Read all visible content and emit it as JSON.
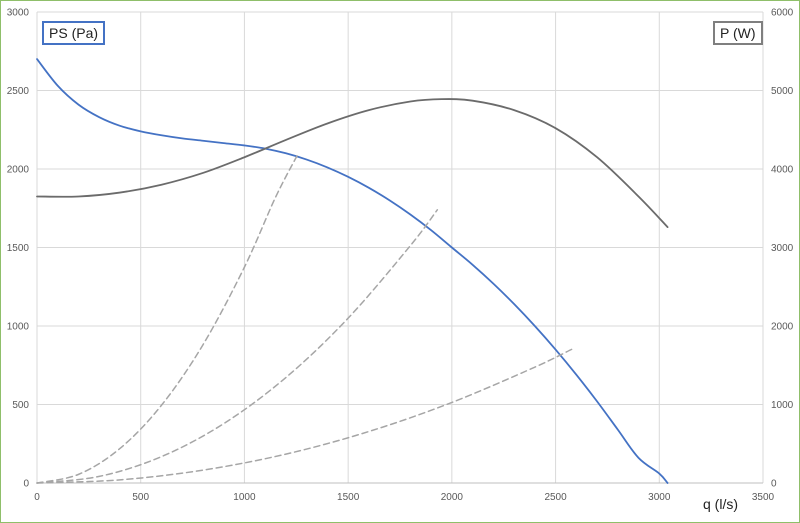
{
  "chart_data": {
    "type": "line",
    "left_axis": {
      "label": "PS (Pa)",
      "range": [
        0,
        3000
      ],
      "ticks": [
        0,
        500,
        1000,
        1500,
        2000,
        2500,
        3000
      ]
    },
    "right_axis": {
      "label": "P (W)",
      "range": [
        0,
        6000
      ],
      "ticks": [
        0,
        1000,
        2000,
        3000,
        4000,
        5000,
        6000
      ]
    },
    "x_axis": {
      "label": "q (l/s)",
      "range": [
        0,
        3500
      ],
      "ticks": [
        0,
        500,
        1000,
        1500,
        2000,
        2500,
        3000,
        3500
      ]
    },
    "grid": true,
    "series": [
      {
        "axis": "left",
        "color": "#4472c4",
        "style": "solid",
        "x": [
          0,
          100,
          200,
          300,
          400,
          500,
          600,
          700,
          800,
          900,
          1000,
          1100,
          1200,
          1300,
          1400,
          1500,
          1600,
          1700,
          1800,
          1900,
          2000,
          2100,
          2200,
          2300,
          2400,
          2500,
          2600,
          2700,
          2800,
          2900,
          3000,
          3040
        ],
        "y": [
          2700,
          2530,
          2410,
          2330,
          2275,
          2240,
          2215,
          2195,
          2180,
          2165,
          2150,
          2130,
          2100,
          2060,
          2010,
          1950,
          1880,
          1800,
          1710,
          1610,
          1500,
          1390,
          1270,
          1140,
          1000,
          850,
          690,
          520,
          340,
          160,
          60,
          0
        ]
      },
      {
        "axis": "right",
        "color": "#6b6b6b",
        "style": "solid",
        "x": [
          0,
          200,
          400,
          600,
          800,
          1000,
          1200,
          1400,
          1600,
          1800,
          1950,
          2100,
          2300,
          2500,
          2700,
          2900,
          3040
        ],
        "y": [
          3650,
          3650,
          3700,
          3800,
          3950,
          4150,
          4370,
          4580,
          4750,
          4860,
          4890,
          4870,
          4750,
          4520,
          4150,
          3650,
          3260
        ]
      },
      {
        "axis": "left",
        "color": "#a6a6a6",
        "style": "dashed",
        "x": [
          0,
          200,
          400,
          600,
          800,
          1000,
          1150,
          1260
        ],
        "y": [
          0,
          55,
          220,
          495,
          880,
          1375,
          1820,
          2100
        ]
      },
      {
        "axis": "left",
        "color": "#a6a6a6",
        "style": "dashed",
        "x": [
          0,
          300,
          600,
          900,
          1200,
          1500,
          1800,
          1930
        ],
        "y": [
          0,
          42,
          168,
          378,
          672,
          1050,
          1512,
          1740
        ]
      },
      {
        "axis": "left",
        "color": "#a6a6a6",
        "style": "dashed",
        "x": [
          0,
          400,
          800,
          1200,
          1600,
          2000,
          2400,
          2580
        ],
        "y": [
          0,
          20,
          82,
          184,
          328,
          513,
          738,
          853
        ]
      }
    ]
  }
}
